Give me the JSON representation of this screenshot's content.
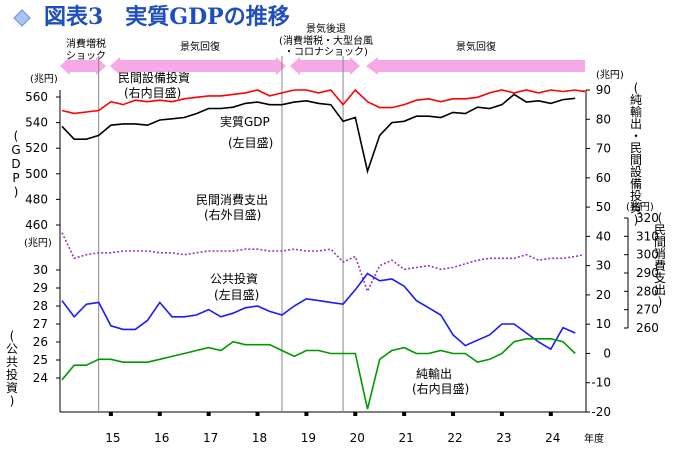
{
  "title": "図表3　実質GDPの推移",
  "x_axis": {
    "unit": "年度",
    "tick_labels": [
      "15",
      "16",
      "17",
      "18",
      "19",
      "20",
      "21",
      "22",
      "23",
      "24"
    ]
  },
  "phases": [
    {
      "label_lines": [
        "消費増税",
        "ショック"
      ]
    },
    {
      "label_lines": [
        "景気回復"
      ]
    },
    {
      "label_lines": [
        "景気後退",
        "(消費増税・大型台風",
        "・コロナショック)"
      ]
    },
    {
      "label_lines": [
        "景気回復"
      ]
    }
  ],
  "left_axis_labels": {
    "gdp_unit": "(兆円)",
    "gdp_name": "(GDP)",
    "consumption_unit": "(兆円)",
    "public_name": "(公共投資)"
  },
  "right_axis_labels": {
    "inner_unit": "(兆円)",
    "inner_name": "(純輸出・民間設備投資)",
    "outer_unit": "(兆円)",
    "outer_name": "(民間消費支出)"
  },
  "series_labels": {
    "capex": [
      "民間設備投資",
      "(右内目盛)"
    ],
    "gdp": [
      "実質GDP",
      "(左目盛)"
    ],
    "consumption": [
      "民間消費支出",
      "(右外目盛)"
    ],
    "public": [
      "公共投資",
      "(左目盛)"
    ],
    "net_exports": [
      "純輸出",
      "(右内目盛)"
    ]
  },
  "colors": {
    "title": "#1f4fbf",
    "capex": "#ff0000",
    "gdp": "#000000",
    "consumption": "#9933cc",
    "public": "#1a1aff",
    "net_exports": "#009900",
    "phase_arrow": "#f7a8e6",
    "divider": "#888888"
  },
  "chart_data": {
    "type": "line",
    "x_unit": "年度 (fiscal year, quarterly)",
    "x_start": 2014.0,
    "x_step": 0.25,
    "dividers": [
      2014.75,
      2018.5,
      2019.75
    ],
    "axes": {
      "left_gdp": {
        "ticks": [
          460,
          480,
          500,
          520,
          540,
          560
        ],
        "range": [
          460,
          565
        ]
      },
      "left_public": {
        "ticks": [
          24,
          25,
          26,
          27,
          28,
          29,
          30
        ],
        "range": [
          23,
          30
        ]
      },
      "right_inner": {
        "ticks": [
          -20,
          -10,
          0,
          10,
          20,
          30,
          40,
          50,
          60,
          70,
          80,
          90
        ],
        "range": [
          -20,
          90
        ]
      },
      "right_outer": {
        "ticks": [
          260,
          270,
          280,
          290,
          300,
          310,
          320
        ],
        "range": [
          260,
          320
        ]
      }
    },
    "series": [
      {
        "key": "capex",
        "axis": "right_inner",
        "values": [
          83,
          82,
          82.5,
          83,
          86,
          85,
          86.5,
          86,
          86.5,
          86,
          87,
          87.5,
          88,
          88,
          88.5,
          89,
          90,
          88,
          89,
          90,
          90,
          89,
          90,
          85,
          90,
          86,
          84,
          84,
          85,
          86.5,
          87,
          86,
          87,
          87,
          87.5,
          89,
          90,
          89,
          90,
          89,
          90,
          89.5,
          90,
          89.5,
          90,
          90
        ]
      },
      {
        "key": "gdp",
        "axis": "left_gdp",
        "values": [
          537,
          527,
          527,
          530,
          538,
          539,
          539,
          538,
          542,
          543,
          544,
          547,
          551,
          551,
          552,
          555,
          556,
          554,
          554,
          556,
          557,
          555,
          554,
          541,
          544,
          502,
          530,
          540,
          541,
          545,
          545,
          544,
          548,
          547,
          552,
          551,
          554,
          562,
          556,
          557,
          555,
          558,
          559
        ]
      },
      {
        "key": "consumption",
        "axis": "right_outer",
        "values": [
          312,
          298,
          300,
          301,
          301,
          302,
          302,
          302,
          301,
          301,
          300,
          301,
          302,
          302,
          302,
          303,
          303,
          302,
          302,
          303,
          302,
          302,
          303,
          296,
          299,
          280,
          294,
          297,
          292,
          293,
          294,
          292,
          293,
          295,
          297,
          298,
          298,
          298,
          300,
          297,
          298,
          298,
          299,
          300
        ]
      },
      {
        "key": "public",
        "axis": "left_public",
        "values": [
          28.3,
          27.4,
          28.1,
          28.2,
          26.9,
          26.7,
          26.7,
          27.2,
          28.2,
          27.4,
          27.4,
          27.5,
          27.8,
          27.4,
          27.6,
          27.9,
          28.0,
          27.7,
          27.5,
          28.0,
          28.4,
          28.3,
          28.2,
          28.1,
          28.9,
          29.8,
          29.4,
          29.5,
          29.1,
          28.3,
          27.9,
          27.5,
          26.4,
          25.8,
          26.1,
          26.4,
          27.0,
          27.0,
          26.5,
          26.0,
          25.6,
          26.8,
          26.5
        ]
      },
      {
        "key": "net_exports",
        "axis": "right_inner",
        "values": [
          -9,
          -4,
          -4,
          -2,
          -2,
          -3,
          -3,
          -3,
          -2,
          -1,
          0,
          1,
          2,
          1,
          4,
          3,
          3,
          3,
          1,
          -1,
          1,
          1,
          0,
          0,
          0,
          -19,
          -2,
          1,
          2,
          0,
          0,
          1,
          0,
          0,
          -3,
          -2,
          0,
          4,
          5,
          5,
          5,
          4,
          0
        ]
      }
    ]
  }
}
